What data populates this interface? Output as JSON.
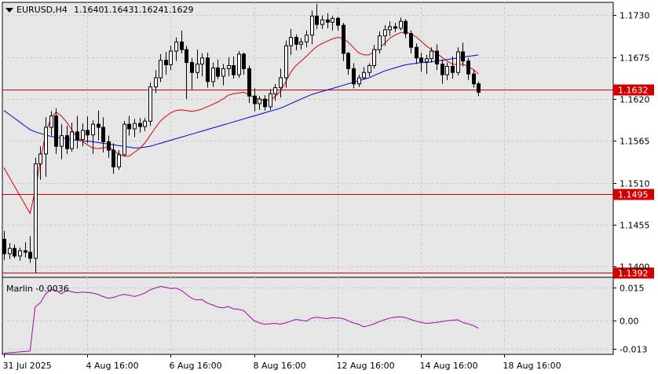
{
  "chart_data": [
    {
      "type": "candlestick",
      "symbol": "EURUSD,H4",
      "ohlc_header": [
        "1.1640",
        "1.1643",
        "1.1624",
        "1.1629"
      ],
      "y_ticks": [
        "1.1730",
        "1.1675",
        "1.1620",
        "1.1565",
        "1.1510",
        "1.1455",
        "1.1400"
      ],
      "ylim": [
        1.1386,
        1.1747
      ],
      "x_labels": [
        "31 Jul 2025",
        "4 Aug 16:00",
        "6 Aug 16:00",
        "8 Aug 16:00",
        "12 Aug 16:00",
        "14 Aug 16:00",
        "18 Aug 16:00"
      ],
      "x_label_bar_index": [
        0,
        16,
        32,
        48,
        64,
        80,
        96
      ],
      "grid": true,
      "colors": {
        "up_fill": "#ffffff",
        "down_fill": "#000000",
        "candle_outline": "#000000",
        "fast_ma": "#e00000",
        "slow_ma": "#0000cc",
        "level_line": "#d00000",
        "oscillator": "#aa00aa",
        "grid": "#c8c8c8"
      },
      "horizontal_levels": [
        {
          "label": "1.1632",
          "value": 1.1632
        },
        {
          "label": "1.1495",
          "value": 1.1495
        },
        {
          "label": "1.1392",
          "value": 1.1392
        }
      ],
      "candles": [
        [
          1.1436,
          1.1447,
          1.1409,
          1.1417
        ],
        [
          1.1417,
          1.1431,
          1.141,
          1.1424
        ],
        [
          1.1424,
          1.1429,
          1.1411,
          1.1414
        ],
        [
          1.1414,
          1.1425,
          1.1408,
          1.1421
        ],
        [
          1.1421,
          1.1432,
          1.1412,
          1.1419
        ],
        [
          1.1419,
          1.144,
          1.1405,
          1.1411
        ],
        [
          1.1411,
          1.1543,
          1.1392,
          1.1535
        ],
        [
          1.1535,
          1.1558,
          1.1514,
          1.1548
        ],
        [
          1.1548,
          1.1596,
          1.1518,
          1.1583
        ],
        [
          1.1583,
          1.1604,
          1.1572,
          1.1598
        ],
        [
          1.1598,
          1.1608,
          1.1548,
          1.1558
        ],
        [
          1.1558,
          1.1587,
          1.1541,
          1.1572
        ],
        [
          1.1572,
          1.1585,
          1.1548,
          1.1555
        ],
        [
          1.1555,
          1.1589,
          1.1551,
          1.1577
        ],
        [
          1.1577,
          1.1598,
          1.1555,
          1.1567
        ],
        [
          1.1567,
          1.1588,
          1.1558,
          1.1579
        ],
        [
          1.1579,
          1.1597,
          1.1562,
          1.1573
        ],
        [
          1.1573,
          1.1592,
          1.1548,
          1.1587
        ],
        [
          1.1587,
          1.1605,
          1.1566,
          1.1583
        ],
        [
          1.1583,
          1.1596,
          1.155,
          1.1564
        ],
        [
          1.1564,
          1.1572,
          1.1543,
          1.1553
        ],
        [
          1.1553,
          1.1562,
          1.1522,
          1.1531
        ],
        [
          1.1531,
          1.1553,
          1.1527,
          1.1547
        ],
        [
          1.1547,
          1.1591,
          1.1545,
          1.1587
        ],
        [
          1.1587,
          1.1598,
          1.1572,
          1.1581
        ],
        [
          1.1581,
          1.1594,
          1.157,
          1.1588
        ],
        [
          1.1588,
          1.1595,
          1.1576,
          1.1584
        ],
        [
          1.1584,
          1.1595,
          1.1578,
          1.1591
        ],
        [
          1.1591,
          1.1642,
          1.1585,
          1.1636
        ],
        [
          1.1636,
          1.1658,
          1.1628,
          1.1648
        ],
        [
          1.1648,
          1.1679,
          1.1642,
          1.1671
        ],
        [
          1.1671,
          1.1682,
          1.1652,
          1.1665
        ],
        [
          1.1665,
          1.169,
          1.1658,
          1.1683
        ],
        [
          1.1683,
          1.1701,
          1.167,
          1.1695
        ],
        [
          1.1695,
          1.171,
          1.168,
          1.1685
        ],
        [
          1.1685,
          1.169,
          1.162,
          1.1668
        ],
        [
          1.1668,
          1.1674,
          1.1632,
          1.1655
        ],
        [
          1.1655,
          1.1685,
          1.1647,
          1.1666
        ],
        [
          1.1666,
          1.168,
          1.165,
          1.1674
        ],
        [
          1.1674,
          1.1681,
          1.1635,
          1.1643
        ],
        [
          1.1643,
          1.1668,
          1.1636,
          1.1661
        ],
        [
          1.1661,
          1.1672,
          1.1646,
          1.165
        ],
        [
          1.165,
          1.1666,
          1.1638,
          1.166
        ],
        [
          1.166,
          1.1675,
          1.165,
          1.1664
        ],
        [
          1.1664,
          1.1676,
          1.1647,
          1.1652
        ],
        [
          1.1652,
          1.1683,
          1.1648,
          1.1679
        ],
        [
          1.1679,
          1.1681,
          1.1652,
          1.166
        ],
        [
          1.166,
          1.1664,
          1.1615,
          1.1624
        ],
        [
          1.1624,
          1.1634,
          1.1604,
          1.1614
        ],
        [
          1.1614,
          1.1624,
          1.1606,
          1.162
        ],
        [
          1.162,
          1.1625,
          1.1605,
          1.161
        ],
        [
          1.161,
          1.1633,
          1.1606,
          1.1627
        ],
        [
          1.1627,
          1.164,
          1.1618,
          1.1635
        ],
        [
          1.1635,
          1.166,
          1.1622,
          1.1648
        ],
        [
          1.1648,
          1.1697,
          1.1635,
          1.169
        ],
        [
          1.169,
          1.1712,
          1.1678,
          1.1701
        ],
        [
          1.1701,
          1.1705,
          1.1684,
          1.1692
        ],
        [
          1.1692,
          1.17,
          1.1685,
          1.1695
        ],
        [
          1.1695,
          1.171,
          1.1688,
          1.1704
        ],
        [
          1.1704,
          1.1736,
          1.1692,
          1.1729
        ],
        [
          1.1729,
          1.1745,
          1.1712,
          1.1718
        ],
        [
          1.1718,
          1.173,
          1.1712,
          1.1724
        ],
        [
          1.1724,
          1.1733,
          1.1713,
          1.1721
        ],
        [
          1.1721,
          1.1729,
          1.171,
          1.1726
        ],
        [
          1.1726,
          1.1728,
          1.171,
          1.1717
        ],
        [
          1.1717,
          1.172,
          1.167,
          1.168
        ],
        [
          1.168,
          1.1682,
          1.1652,
          1.166
        ],
        [
          1.166,
          1.1667,
          1.1634,
          1.164
        ],
        [
          1.164,
          1.1652,
          1.1636,
          1.1648
        ],
        [
          1.1648,
          1.1662,
          1.1646,
          1.1655
        ],
        [
          1.1655,
          1.1667,
          1.165,
          1.1664
        ],
        [
          1.1664,
          1.1691,
          1.166,
          1.1685
        ],
        [
          1.1685,
          1.1709,
          1.168,
          1.1703
        ],
        [
          1.1703,
          1.1717,
          1.169,
          1.1711
        ],
        [
          1.1711,
          1.1722,
          1.1703,
          1.1715
        ],
        [
          1.1715,
          1.172,
          1.1708,
          1.1713
        ],
        [
          1.1713,
          1.1727,
          1.171,
          1.1722
        ],
        [
          1.1722,
          1.1725,
          1.17,
          1.1706
        ],
        [
          1.1706,
          1.171,
          1.168,
          1.1688
        ],
        [
          1.1688,
          1.1693,
          1.1666,
          1.1674
        ],
        [
          1.1674,
          1.1681,
          1.1656,
          1.1669
        ],
        [
          1.1669,
          1.1678,
          1.1653,
          1.1673
        ],
        [
          1.1673,
          1.1688,
          1.1668,
          1.1683
        ],
        [
          1.1683,
          1.1692,
          1.1658,
          1.1666
        ],
        [
          1.1666,
          1.1672,
          1.164,
          1.1652
        ],
        [
          1.1652,
          1.1668,
          1.1645,
          1.1663
        ],
        [
          1.1663,
          1.1676,
          1.1647,
          1.1655
        ],
        [
          1.1655,
          1.1688,
          1.1651,
          1.1682
        ],
        [
          1.1682,
          1.1694,
          1.1663,
          1.167
        ],
        [
          1.167,
          1.1674,
          1.1645,
          1.1653
        ],
        [
          1.1653,
          1.1659,
          1.1635,
          1.164
        ],
        [
          1.164,
          1.1643,
          1.1624,
          1.1629
        ]
      ],
      "fast_ma": [
        1.153,
        1.1518,
        1.1506,
        1.1494,
        1.1482,
        1.147,
        1.15,
        1.154,
        1.1575,
        1.1595,
        1.1603,
        1.1598,
        1.159,
        1.158,
        1.157,
        1.1565,
        1.156,
        1.1556,
        1.1555,
        1.1556,
        1.1557,
        1.1553,
        1.1548,
        1.1545,
        1.1545,
        1.155,
        1.1555,
        1.1562,
        1.1572,
        1.1582,
        1.1591,
        1.1597,
        1.1602,
        1.1605,
        1.1606,
        1.1605,
        1.1604,
        1.1605,
        1.1607,
        1.161,
        1.1613,
        1.1616,
        1.162,
        1.1625,
        1.1627,
        1.1628,
        1.1629,
        1.1626,
        1.1622,
        1.162,
        1.1618,
        1.1619,
        1.1623,
        1.163,
        1.1642,
        1.1655,
        1.1664,
        1.167,
        1.1676,
        1.1683,
        1.1689,
        1.1693,
        1.1696,
        1.1699,
        1.1701,
        1.17,
        1.1695,
        1.1688,
        1.1681,
        1.1678,
        1.1678,
        1.1682,
        1.1687,
        1.1693,
        1.17,
        1.1704,
        1.1707,
        1.1708,
        1.1706,
        1.1702,
        1.1696,
        1.169,
        1.1685,
        1.168,
        1.1675,
        1.167,
        1.1666,
        1.1665,
        1.1666,
        1.1663,
        1.1659,
        1.1653
      ],
      "slow_ma": [
        1.1605,
        1.16,
        1.1595,
        1.159,
        1.1585,
        1.158,
        1.1577,
        1.1575,
        1.1573,
        1.1571,
        1.157,
        1.1569,
        1.1568,
        1.1567,
        1.1566,
        1.1565,
        1.1565,
        1.1564,
        1.1563,
        1.1562,
        1.1561,
        1.156,
        1.1559,
        1.1558,
        1.1557,
        1.1556,
        1.1556,
        1.1557,
        1.1558,
        1.156,
        1.1562,
        1.1564,
        1.1566,
        1.1568,
        1.157,
        1.1572,
        1.1574,
        1.1576,
        1.1578,
        1.158,
        1.1582,
        1.1584,
        1.1586,
        1.1588,
        1.159,
        1.1592,
        1.1594,
        1.1596,
        1.1598,
        1.16,
        1.1602,
        1.1604,
        1.1606,
        1.1608,
        1.1611,
        1.1614,
        1.1617,
        1.162,
        1.1623,
        1.1626,
        1.1628,
        1.163,
        1.1632,
        1.1634,
        1.1636,
        1.1638,
        1.164,
        1.1642,
        1.1644,
        1.1646,
        1.1648,
        1.1651,
        1.1654,
        1.1657,
        1.1659,
        1.1661,
        1.1663,
        1.1665,
        1.1666,
        1.1667,
        1.1668,
        1.1668,
        1.1669,
        1.167,
        1.1671,
        1.1672,
        1.1673,
        1.1674,
        1.1675,
        1.1676,
        1.1677,
        1.1678
      ]
    },
    {
      "type": "line",
      "label": "Marlin -0.0036",
      "y_ticks": [
        "0.015",
        "0.00",
        "-0.013"
      ],
      "ylim": [
        -0.0155,
        0.0195
      ],
      "values": [
        -0.015,
        -0.0148,
        -0.0146,
        -0.0144,
        -0.0142,
        -0.014,
        0.006,
        0.008,
        0.012,
        0.014,
        0.0135,
        0.012,
        0.0135,
        0.013,
        0.0125,
        0.0128,
        0.0126,
        0.0124,
        0.0118,
        0.0108,
        0.01,
        0.0104,
        0.0112,
        0.0118,
        0.0114,
        0.0108,
        0.0114,
        0.0124,
        0.0138,
        0.0146,
        0.0154,
        0.015,
        0.0144,
        0.0146,
        0.0136,
        0.0118,
        0.01,
        0.0092,
        0.0094,
        0.0078,
        0.007,
        0.006,
        0.0056,
        0.0062,
        0.0052,
        0.005,
        0.0044,
        0.002,
        -0.0002,
        -0.0012,
        -0.0018,
        -0.0016,
        -0.0014,
        -0.0018,
        -0.0012,
        -0.0004,
        0.0004,
        0.0,
        -0.0004,
        0.001,
        0.0014,
        0.001,
        0.0008,
        0.0012,
        0.001,
        0.0008,
        -0.0002,
        -0.0012,
        -0.0018,
        -0.003,
        -0.0024,
        -0.0016,
        -0.0006,
        0.0002,
        0.001,
        0.0014,
        0.0016,
        0.0012,
        0.0004,
        -0.0004,
        -0.001,
        -0.0014,
        -0.0012,
        -0.001,
        -0.0006,
        -0.0002,
        0.0,
        0.0002,
        -0.001,
        -0.0016,
        -0.0024,
        -0.0036
      ]
    }
  ]
}
